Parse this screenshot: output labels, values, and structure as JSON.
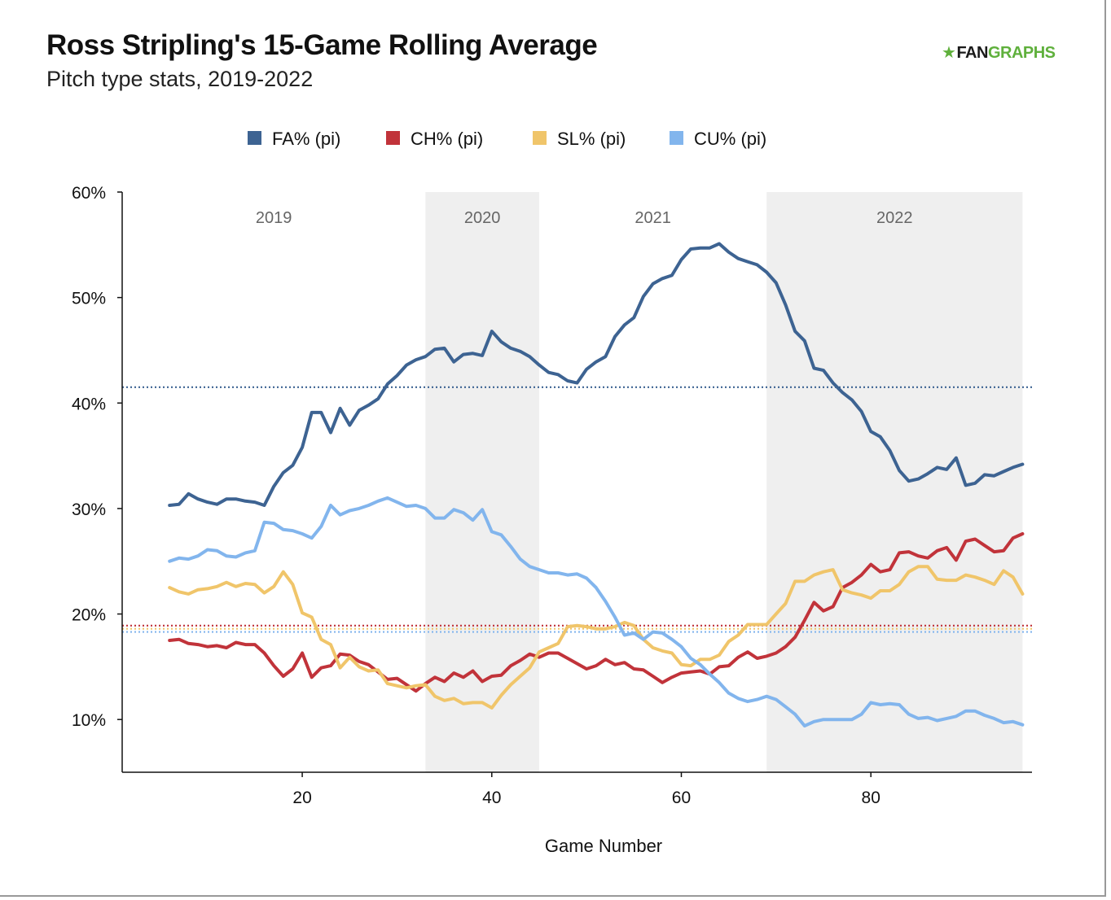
{
  "header": {
    "title": "Ross Stripling's 15-Game Rolling Average",
    "subtitle": "Pitch type stats, 2019-2022",
    "logo_fan": "FAN",
    "logo_graphs": "GRAPHS",
    "logo_icon": "fangraphs-logo-icon"
  },
  "chart_data": {
    "type": "line",
    "xlabel": "Game Number",
    "ylabel": "",
    "xlim": [
      1,
      97
    ],
    "ylim": [
      5,
      60
    ],
    "x_ticks": [
      20,
      40,
      60,
      80
    ],
    "y_ticks": [
      10,
      20,
      30,
      40,
      50,
      60
    ],
    "y_tick_format": "%",
    "grid": false,
    "legend_position": "top-center",
    "season_bands": [
      {
        "label": "2019",
        "start": 1,
        "end": 33,
        "shaded": false
      },
      {
        "label": "2020",
        "start": 33,
        "end": 45,
        "shaded": true
      },
      {
        "label": "2021",
        "start": 45,
        "end": 69,
        "shaded": false
      },
      {
        "label": "2022",
        "start": 69,
        "end": 96,
        "shaded": true
      }
    ],
    "x_start": 6,
    "series": [
      {
        "name": "FA% (pi)",
        "color": "#3d6392",
        "career_avg": 41.5,
        "values": [
          30.3,
          30.4,
          31.4,
          30.9,
          30.6,
          30.4,
          30.9,
          30.9,
          30.7,
          30.6,
          30.3,
          32.1,
          33.4,
          34.1,
          35.8,
          39.1,
          39.1,
          37.2,
          39.5,
          37.9,
          39.3,
          39.8,
          40.4,
          41.8,
          42.6,
          43.6,
          44.1,
          44.4,
          45.1,
          45.2,
          43.9,
          44.6,
          44.7,
          44.5,
          46.8,
          45.8,
          45.2,
          44.9,
          44.4,
          43.6,
          42.9,
          42.7,
          42.1,
          41.9,
          43.2,
          43.9,
          44.4,
          46.3,
          47.4,
          48.1,
          50.1,
          51.3,
          51.8,
          52.1,
          53.6,
          54.6,
          54.7,
          54.7,
          55.1,
          54.3,
          53.7,
          53.4,
          53.1,
          52.4,
          51.4,
          49.3,
          46.8,
          45.9,
          43.3,
          43.1,
          41.9,
          41.0,
          40.3,
          39.2,
          37.3,
          36.8,
          35.5,
          33.6,
          32.6,
          32.8,
          33.3,
          33.9,
          33.7,
          34.8,
          32.2,
          32.4,
          33.2,
          33.1,
          33.5,
          33.9,
          34.2
        ]
      },
      {
        "name": "CH% (pi)",
        "color": "#c1333a",
        "career_avg": 18.9,
        "values": [
          17.5,
          17.6,
          17.2,
          17.1,
          16.9,
          17.0,
          16.8,
          17.3,
          17.1,
          17.1,
          16.3,
          15.1,
          14.1,
          14.8,
          16.3,
          14.0,
          14.9,
          15.1,
          16.2,
          16.1,
          15.5,
          15.2,
          14.5,
          13.8,
          13.9,
          13.3,
          12.7,
          13.4,
          14.0,
          13.6,
          14.4,
          14.0,
          14.6,
          13.6,
          14.1,
          14.2,
          15.1,
          15.6,
          16.2,
          15.9,
          16.3,
          16.3,
          15.8,
          15.3,
          14.8,
          15.1,
          15.7,
          15.2,
          15.4,
          14.8,
          14.7,
          14.1,
          13.5,
          14.0,
          14.4,
          14.5,
          14.6,
          14.3,
          15.0,
          15.1,
          15.9,
          16.4,
          15.8,
          16.0,
          16.3,
          16.9,
          17.8,
          19.4,
          21.1,
          20.3,
          20.7,
          22.5,
          23.0,
          23.7,
          24.7,
          24.0,
          24.2,
          25.8,
          25.9,
          25.5,
          25.3,
          26.0,
          26.3,
          25.1,
          26.9,
          27.1,
          26.5,
          25.9,
          26.0,
          27.2,
          27.6
        ]
      },
      {
        "name": "SL% (pi)",
        "color": "#f0c56a",
        "career_avg": 18.6,
        "values": [
          22.5,
          22.1,
          21.9,
          22.3,
          22.4,
          22.6,
          23.0,
          22.6,
          22.9,
          22.8,
          22.0,
          22.6,
          24.0,
          22.8,
          20.1,
          19.7,
          17.6,
          17.1,
          14.9,
          15.9,
          15.0,
          14.6,
          14.7,
          13.4,
          13.2,
          13.0,
          13.2,
          13.3,
          12.2,
          11.8,
          12.0,
          11.5,
          11.6,
          11.6,
          11.1,
          12.3,
          13.3,
          14.1,
          14.9,
          16.4,
          16.8,
          17.2,
          18.8,
          18.9,
          18.8,
          18.6,
          18.6,
          18.8,
          19.2,
          18.9,
          17.6,
          16.8,
          16.5,
          16.3,
          15.2,
          15.1,
          15.7,
          15.7,
          16.1,
          17.4,
          18.0,
          19.0,
          19.0,
          19.0,
          20.0,
          21.0,
          23.1,
          23.1,
          23.7,
          24.0,
          24.2,
          22.3,
          22.0,
          21.8,
          21.5,
          22.2,
          22.2,
          22.8,
          24.0,
          24.5,
          24.5,
          23.3,
          23.2,
          23.2,
          23.7,
          23.5,
          23.2,
          22.8,
          24.1,
          23.5,
          21.9
        ]
      },
      {
        "name": "CU% (pi)",
        "color": "#82b5ed",
        "career_avg": 18.3,
        "values": [
          25.0,
          25.3,
          25.2,
          25.5,
          26.1,
          26.0,
          25.5,
          25.4,
          25.8,
          26.0,
          28.7,
          28.6,
          28.0,
          27.9,
          27.6,
          27.2,
          28.3,
          30.3,
          29.4,
          29.8,
          30.0,
          30.3,
          30.7,
          31.0,
          30.6,
          30.2,
          30.3,
          30.0,
          29.1,
          29.1,
          29.9,
          29.6,
          28.9,
          29.9,
          27.8,
          27.5,
          26.4,
          25.2,
          24.5,
          24.2,
          23.9,
          23.9,
          23.7,
          23.8,
          23.4,
          22.5,
          21.2,
          19.7,
          18.0,
          18.2,
          17.6,
          18.3,
          18.2,
          17.6,
          16.9,
          15.8,
          15.2,
          14.3,
          13.5,
          12.5,
          12.0,
          11.7,
          11.9,
          12.2,
          11.9,
          11.2,
          10.5,
          9.4,
          9.8,
          10.0,
          10.0,
          10.0,
          10.0,
          10.5,
          11.6,
          11.4,
          11.5,
          11.4,
          10.5,
          10.1,
          10.2,
          9.9,
          10.1,
          10.3,
          10.8,
          10.8,
          10.4,
          10.1,
          9.7,
          9.8,
          9.5
        ]
      }
    ]
  }
}
